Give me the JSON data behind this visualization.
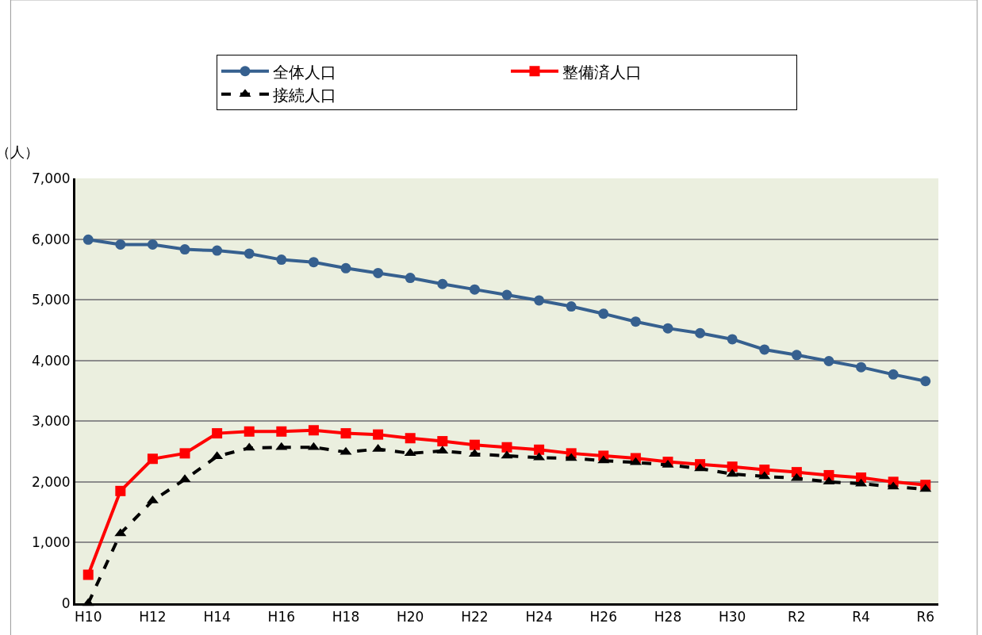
{
  "chart_data": {
    "type": "line",
    "ylabel": "（人）",
    "categories": [
      "H10",
      null,
      "H12",
      null,
      "H14",
      null,
      "H16",
      null,
      "H18",
      null,
      "H20",
      null,
      "H22",
      null,
      "H24",
      null,
      "H26",
      null,
      "H28",
      null,
      "H30",
      null,
      "R2",
      null,
      "R4",
      null,
      "R6"
    ],
    "series": [
      {
        "name": "全体人口",
        "color": "#36608f",
        "marker": "circle",
        "line_style": "solid",
        "values": [
          5990,
          5910,
          5910,
          5830,
          5810,
          5760,
          5660,
          5620,
          5520,
          5440,
          5360,
          5260,
          5170,
          5080,
          4990,
          4890,
          4770,
          4640,
          4530,
          4450,
          4350,
          4180,
          4090,
          3990,
          3890,
          3770,
          3660
        ]
      },
      {
        "name": "整備済人口",
        "color": "#ff0000",
        "marker": "square",
        "line_style": "solid",
        "values": [
          470,
          1850,
          2380,
          2470,
          2800,
          2830,
          2830,
          2850,
          2800,
          2780,
          2720,
          2670,
          2610,
          2570,
          2530,
          2470,
          2430,
          2390,
          2330,
          2290,
          2250,
          2200,
          2160,
          2110,
          2070,
          2000,
          1950
        ]
      },
      {
        "name": "接続人口",
        "color": "#000000",
        "marker": "triangle",
        "line_style": "dashed",
        "values": [
          0,
          1150,
          1690,
          2040,
          2420,
          2560,
          2570,
          2570,
          2490,
          2540,
          2470,
          2510,
          2460,
          2430,
          2400,
          2390,
          2350,
          2320,
          2280,
          2220,
          2130,
          2090,
          2060,
          2000,
          1970,
          1920,
          1880
        ]
      }
    ],
    "ylim": [
      0,
      7000
    ],
    "yticks": [
      {
        "value": 0,
        "label": "0"
      },
      {
        "value": 1000,
        "label": "1,000"
      },
      {
        "value": 2000,
        "label": "2,000"
      },
      {
        "value": 3000,
        "label": "3,000"
      },
      {
        "value": 4000,
        "label": "4,000"
      },
      {
        "value": 5000,
        "label": "5,000"
      },
      {
        "value": 6000,
        "label": "6,000"
      },
      {
        "value": 7000,
        "label": "7,000"
      }
    ],
    "grid": "y",
    "legend": "top"
  }
}
